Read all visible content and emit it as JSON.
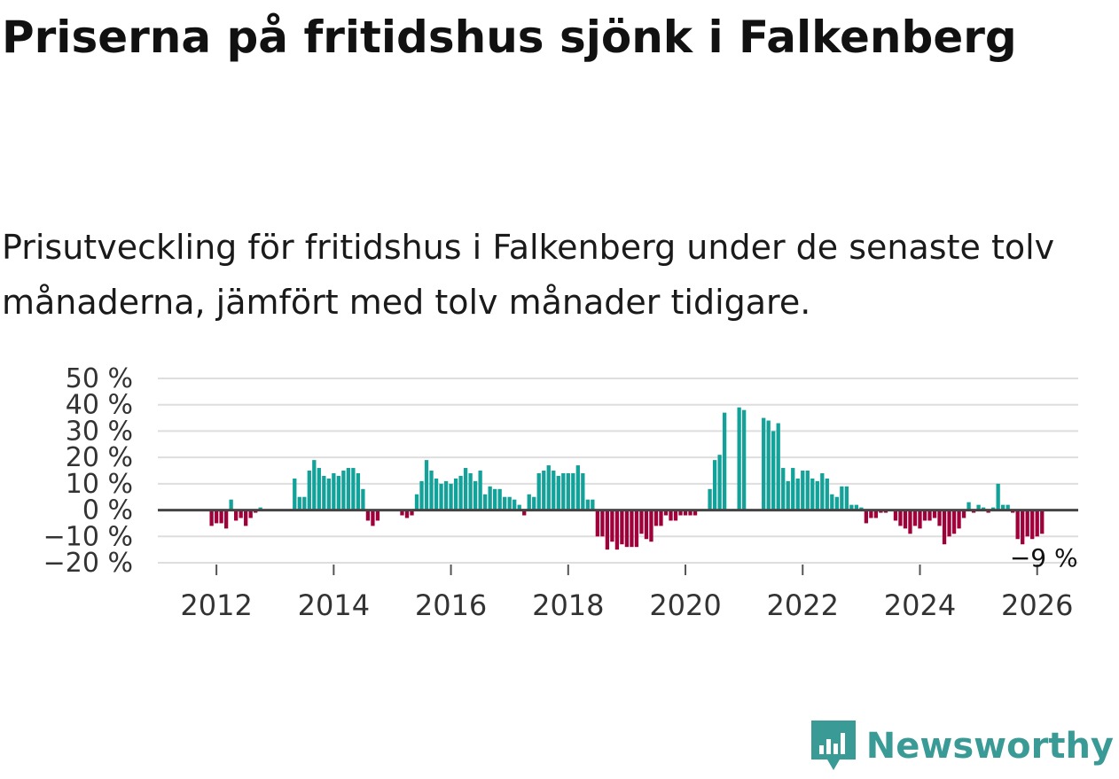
{
  "title": "Priserna på fritidshus sjönk i Falkenberg",
  "subtitle": "Prisutveckling för fritidshus i Falkenberg under de senaste tolv månaderna, jämfört med tolv månader tidigare.",
  "brand": {
    "name": "Newsworthy",
    "icon": "newsworthy-logo-icon",
    "color": "#3a9b96"
  },
  "colors": {
    "positive": "#13a29a",
    "negative": "#a0003a",
    "grid": "#dedede",
    "zero": "#444444"
  },
  "chart_data": {
    "type": "bar",
    "ylim": [
      -20,
      50
    ],
    "yticks": [
      50,
      40,
      30,
      20,
      10,
      0,
      -10,
      -20
    ],
    "ytick_labels": [
      "50 %",
      "40 %",
      "30 %",
      "20 %",
      "10 %",
      "0 %",
      "−10 %",
      "−20 %"
    ],
    "xticks": [
      2012,
      2014,
      2016,
      2018,
      2020,
      2022,
      2024,
      2026
    ],
    "xtick_labels": [
      "2012",
      "2014",
      "2016",
      "2018",
      "2020",
      "2022",
      "2024",
      "2026"
    ],
    "xlim": [
      2011.0,
      2026.7
    ],
    "start": "2011-12",
    "grid": true,
    "last_label": "−9 %",
    "values": [
      -6,
      -5,
      -5,
      -7,
      4,
      -4,
      -3,
      -6,
      -3,
      -1,
      1,
      null,
      null,
      null,
      null,
      null,
      null,
      12,
      5,
      5,
      15,
      19,
      16,
      13,
      12,
      14,
      13,
      15,
      16,
      16,
      14,
      8,
      -4,
      -6,
      -4,
      null,
      null,
      null,
      null,
      -2,
      -3,
      -2,
      6,
      11,
      19,
      15,
      12,
      10,
      11,
      10,
      12,
      13,
      16,
      14,
      11,
      15,
      6,
      9,
      8,
      8,
      5,
      5,
      4,
      2,
      -2,
      6,
      5,
      14,
      15,
      17,
      15,
      13,
      14,
      14,
      14,
      17,
      14,
      4,
      4,
      -10,
      -10,
      -15,
      -12,
      -15,
      -13,
      -14,
      -14,
      -14,
      -9,
      -11,
      -12,
      -6,
      -6,
      -2,
      -4,
      -4,
      -2,
      -2,
      -2,
      -2,
      null,
      null,
      8,
      19,
      21,
      37,
      null,
      null,
      39,
      38,
      null,
      null,
      null,
      35,
      34,
      30,
      33,
      16,
      11,
      16,
      12,
      15,
      15,
      12,
      11,
      14,
      12,
      6,
      5,
      9,
      9,
      2,
      2,
      1,
      -5,
      -3,
      -3,
      -1,
      -1,
      null,
      -4,
      -6,
      -7,
      -9,
      -6,
      -7,
      -4,
      -4,
      -3,
      -6,
      -13,
      -10,
      -9,
      -7,
      -3,
      3,
      -1,
      2,
      1,
      -1,
      1,
      10,
      2,
      2,
      -1,
      -11,
      -13,
      -10,
      -11,
      -10,
      -9
    ]
  }
}
